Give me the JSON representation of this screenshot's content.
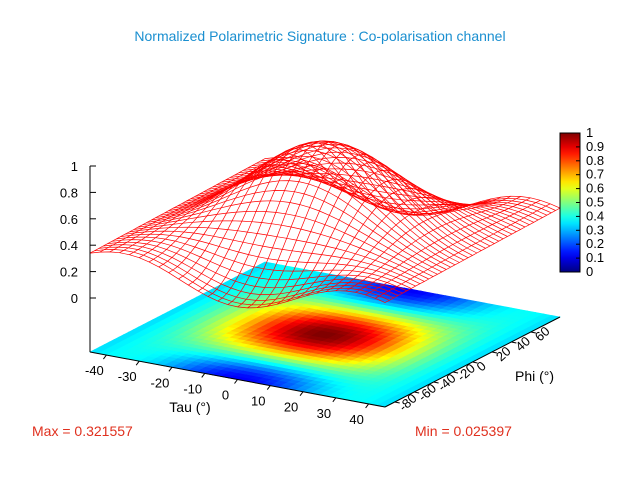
{
  "chart_data": {
    "type": "surface3d",
    "title": "Normalized Polarimetric Signature : Co-polarisation channel",
    "xlabel": "Tau (°)",
    "ylabel": "Phi (°)",
    "x_ticks": [
      "-40",
      "-30",
      "-20",
      "-10",
      "0",
      "10",
      "20",
      "30",
      "40"
    ],
    "y_ticks": [
      "-80",
      "-60",
      "-40",
      "-20",
      "0",
      "20",
      "40",
      "60"
    ],
    "z_ticks": [
      "0",
      "0.2",
      "0.4",
      "0.6",
      "0.8",
      "1"
    ],
    "colorbar_ticks": [
      "0",
      "0.1",
      "0.2",
      "0.3",
      "0.4",
      "0.5",
      "0.6",
      "0.7",
      "0.8",
      "0.9",
      "1"
    ],
    "xlim": [
      -45,
      45
    ],
    "ylim": [
      -90,
      90
    ],
    "zlim": [
      0,
      1
    ],
    "surface_color": "#ff0000",
    "colormap": "jet",
    "max_label": "Max = 0.321557",
    "min_label": "Min = 0.025397"
  }
}
